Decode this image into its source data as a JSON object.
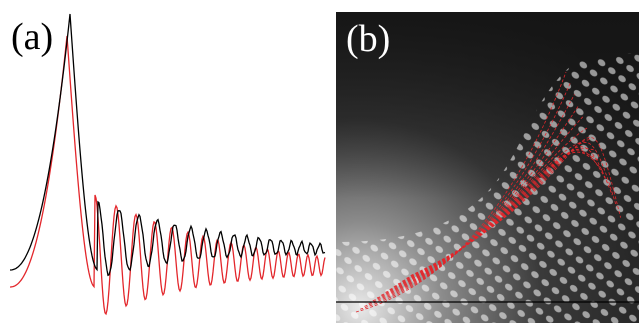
{
  "figure": {
    "panel_a": {
      "label": "(a)",
      "series": [
        {
          "color": "#000000"
        },
        {
          "color": "#e3262b"
        }
      ]
    },
    "panel_b": {
      "label": "(b)",
      "overlay_color": "#e3262b",
      "line_color": "#000000"
    }
  }
}
